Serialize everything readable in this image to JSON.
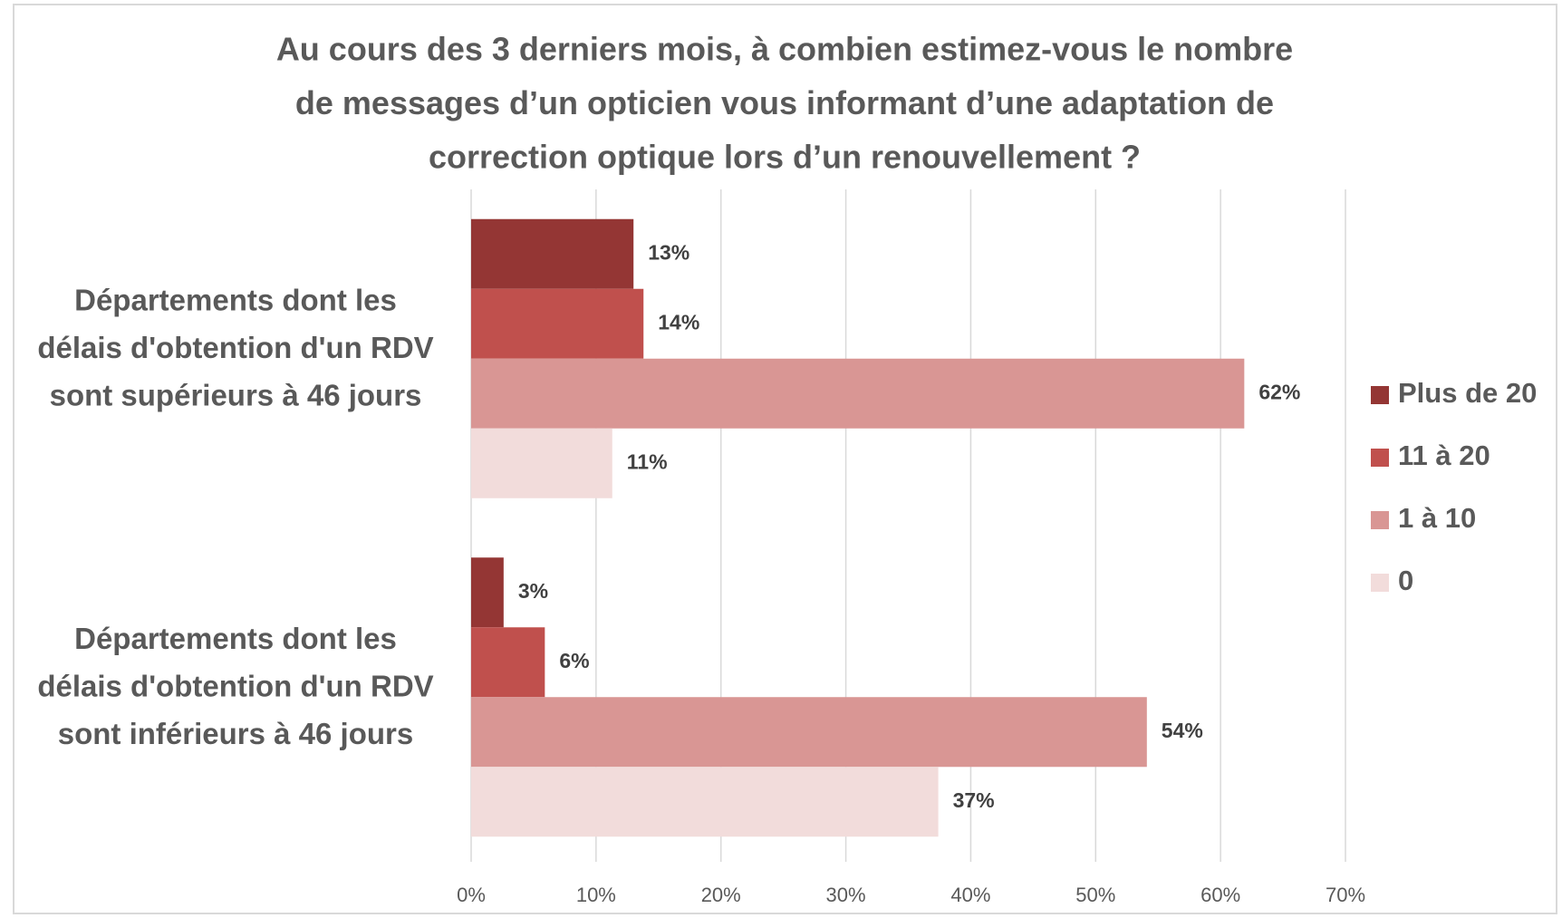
{
  "chart_data": {
    "type": "bar",
    "orientation": "horizontal",
    "title": [
      "Au cours des 3 derniers mois, à combien estimez-vous le nombre",
      "de messages d’un opticien vous informant d’une adaptation de",
      "correction optique lors d’un renouvellement ?"
    ],
    "categories": [
      "Départements dont les délais d'obtention d'un RDV sont supérieurs à 46 jours",
      "Départements dont les délais d'obtention d'un RDV sont inférieurs à 46 jours"
    ],
    "series": [
      {
        "name": "Plus de 20",
        "color": "#943634",
        "values": [
          13,
          2.6
        ],
        "value_labels": [
          "13%",
          "3%"
        ]
      },
      {
        "name": "11 à 20",
        "color": "#c0504d",
        "values": [
          13.8,
          5.9
        ],
        "value_labels": [
          "14%",
          "6%"
        ]
      },
      {
        "name": "1 à 10",
        "color": "#d99694",
        "values": [
          61.9,
          54.1
        ],
        "value_labels": [
          "62%",
          "54%"
        ]
      },
      {
        "name": "0",
        "color": "#f2dcdb",
        "values": [
          11.3,
          37.4
        ],
        "value_labels": [
          "11%",
          "37%"
        ]
      }
    ],
    "xlim": [
      0,
      70
    ],
    "xticks": [
      {
        "value": 0,
        "label": "0%"
      },
      {
        "value": 10,
        "label": "10%"
      },
      {
        "value": 20,
        "label": "20%"
      },
      {
        "value": 30,
        "label": "30%"
      },
      {
        "value": 40,
        "label": "40%"
      },
      {
        "value": 50,
        "label": "50%"
      },
      {
        "value": 60,
        "label": "60%"
      },
      {
        "value": 70,
        "label": "70%"
      }
    ],
    "grid": true,
    "legend": "right"
  }
}
